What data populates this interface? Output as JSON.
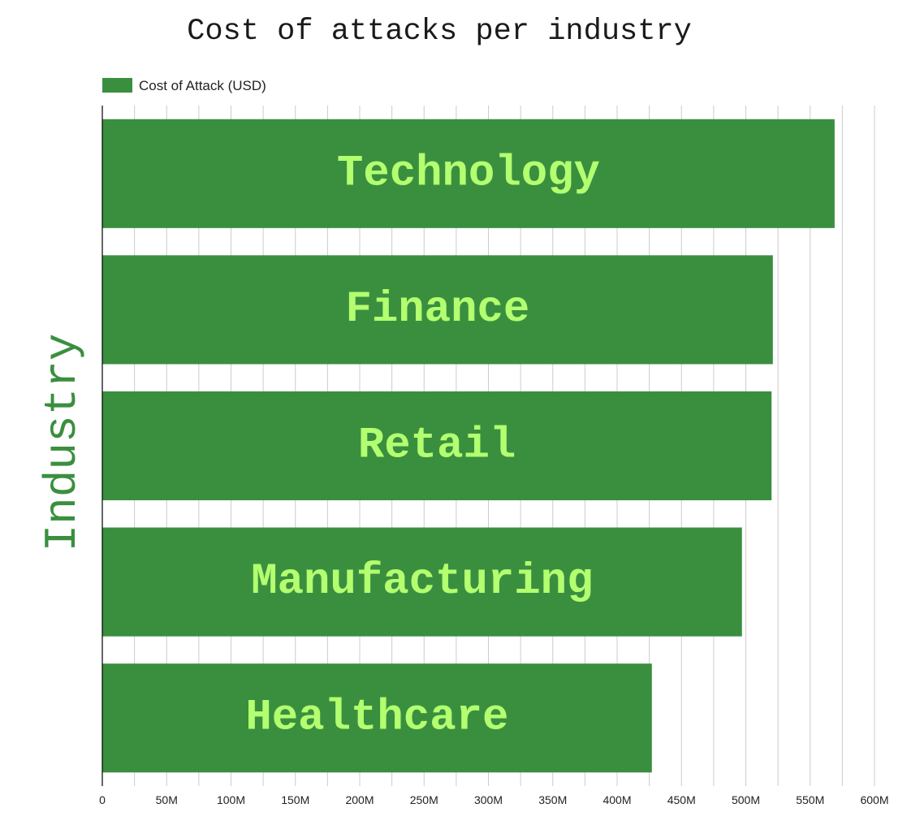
{
  "chart_data": {
    "type": "bar",
    "orientation": "horizontal",
    "title": "Cost of attacks per industry",
    "ylabel": "Industry",
    "xlabel": "",
    "categories": [
      "Technology",
      "Finance",
      "Retail",
      "Manufacturing",
      "Healthcare"
    ],
    "series": [
      {
        "name": "Cost of Attack (USD)",
        "values": [
          569000000,
          521000000,
          520000000,
          497000000,
          427000000
        ]
      }
    ],
    "xlim": [
      0,
      600000000
    ],
    "x_ticks": [
      "0",
      "50M",
      "100M",
      "150M",
      "200M",
      "250M",
      "300M",
      "350M",
      "400M",
      "450M",
      "500M",
      "550M",
      "600M"
    ],
    "grid": true,
    "legend_position": "top-left",
    "colors": {
      "bar": "#3a8f3f",
      "bar_label": "#b3ff70",
      "ylabel": "#3a8f3f",
      "grid": "#cccccc",
      "axis": "#000000"
    }
  }
}
